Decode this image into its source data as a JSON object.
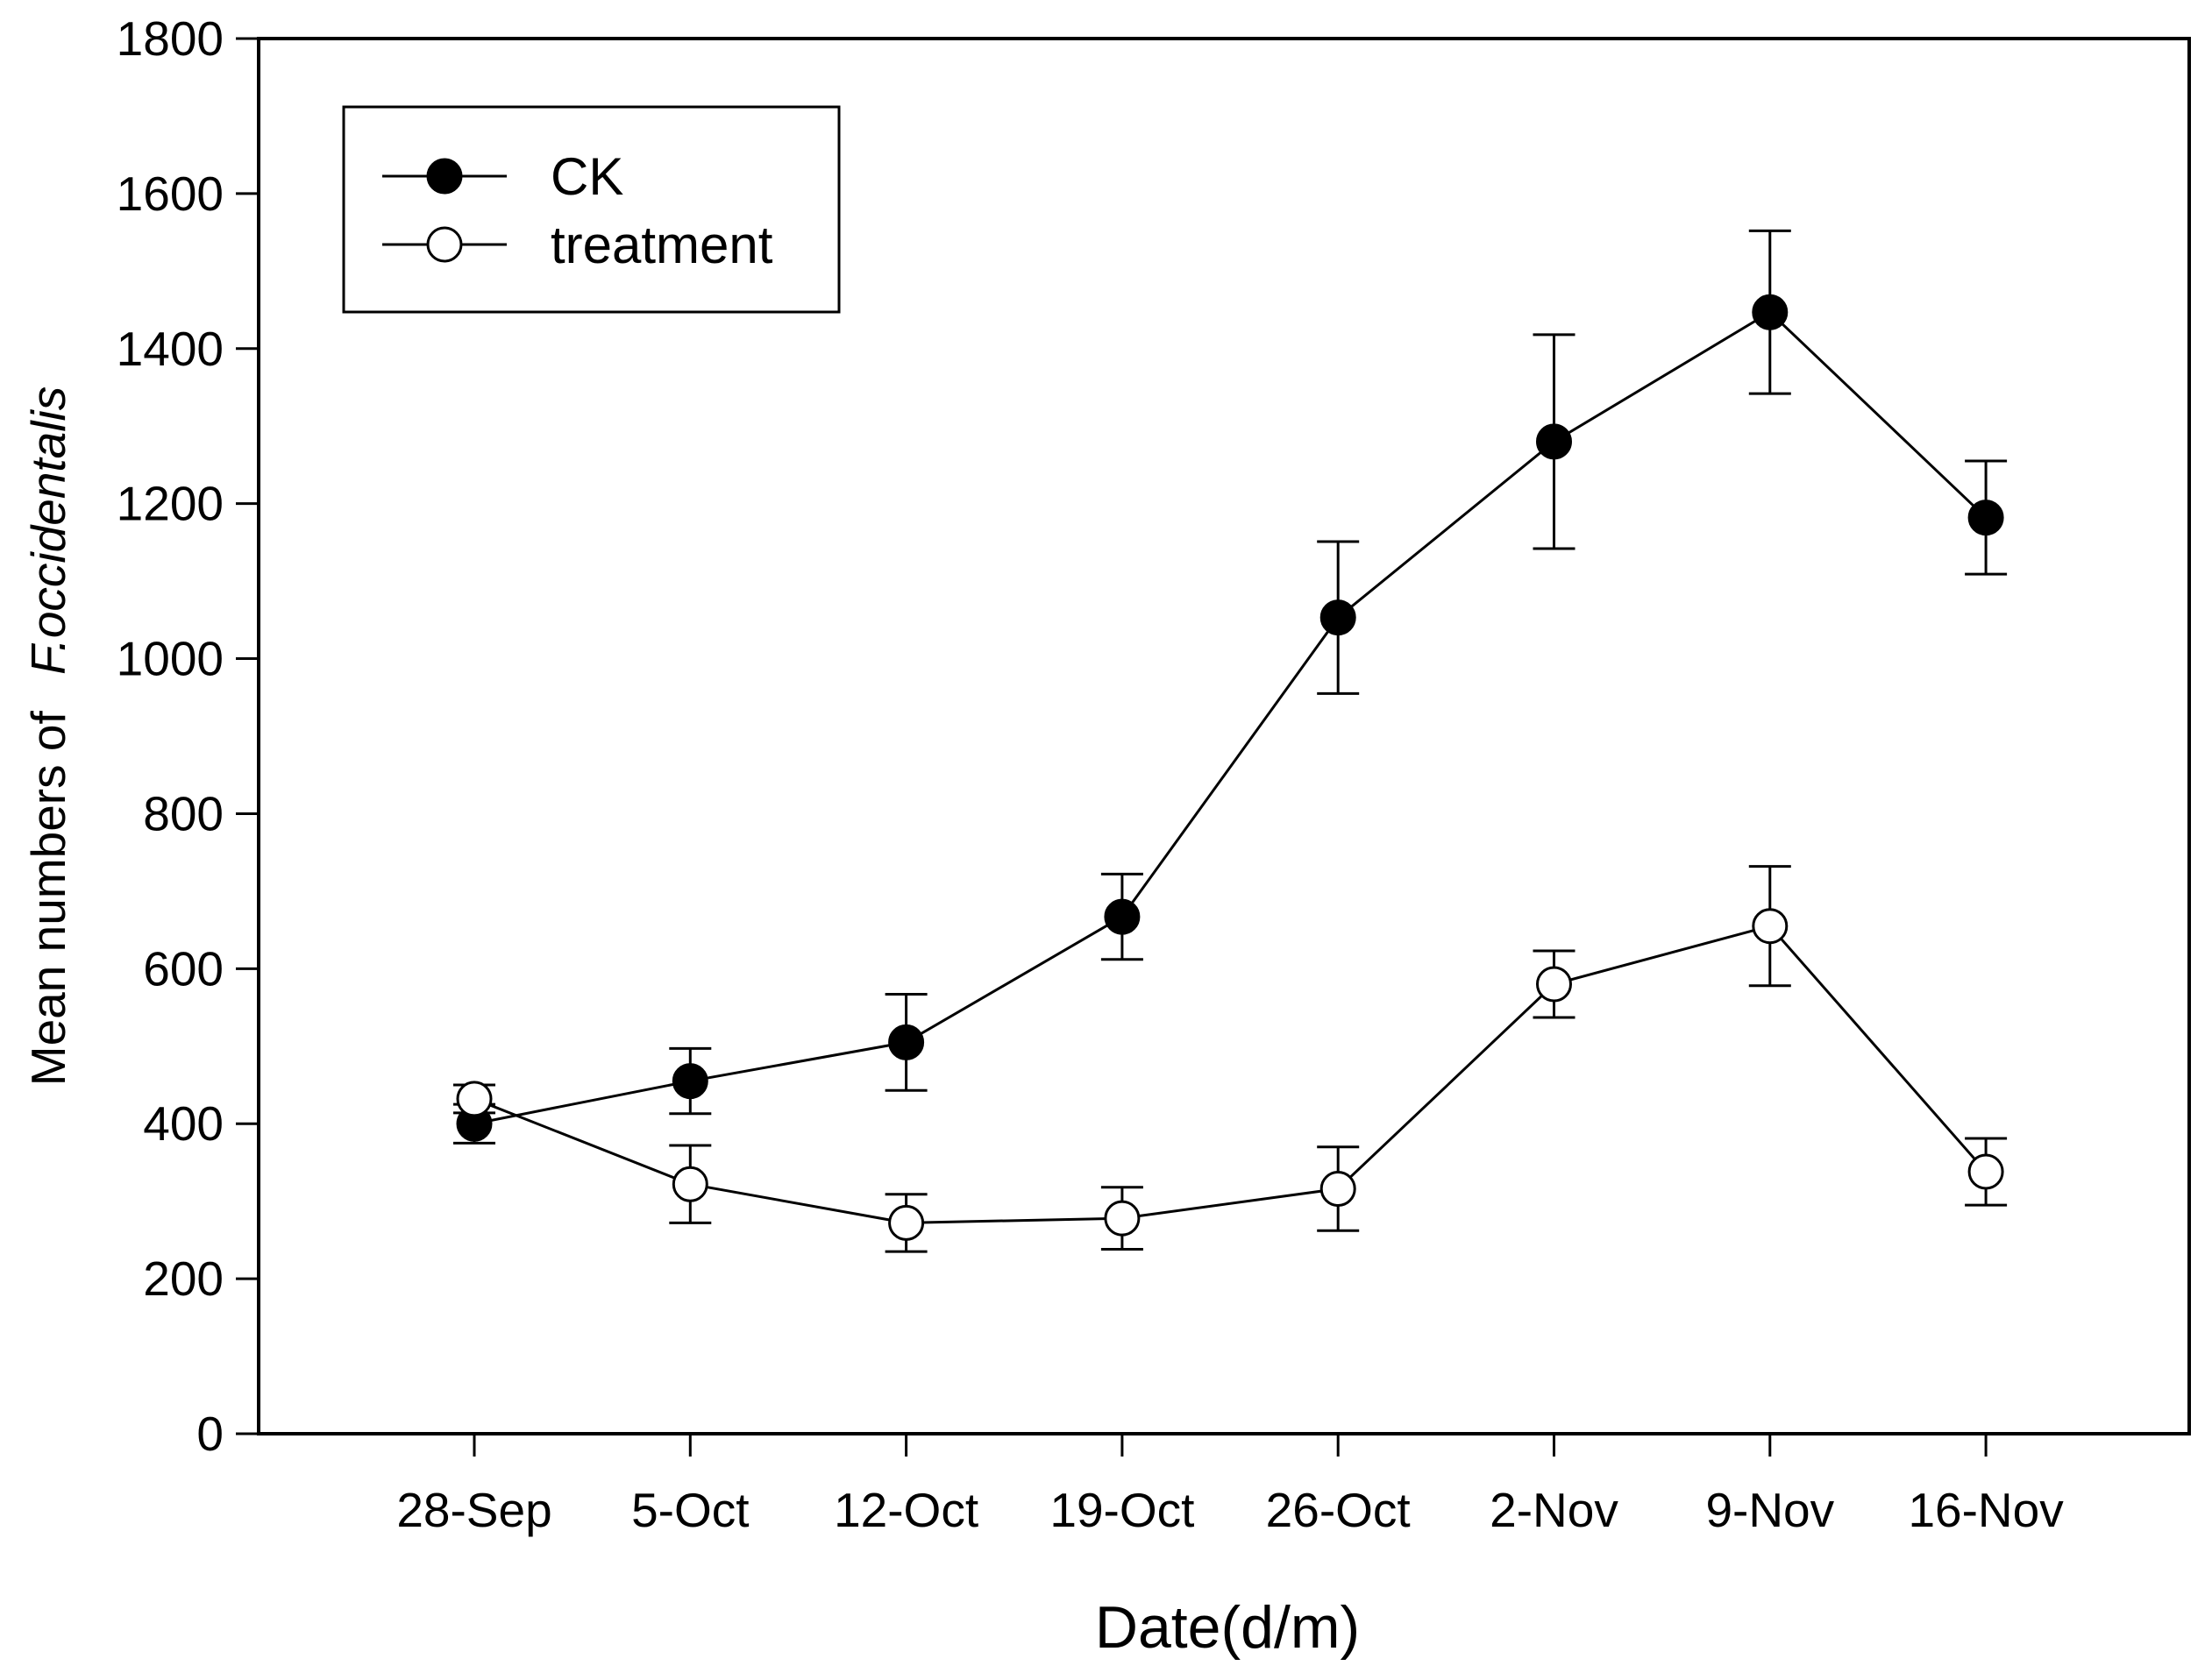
{
  "chart_data": {
    "type": "line",
    "title": "",
    "xlabel": "Date(d/m)",
    "ylabel_prefix": "Mean numbers of",
    "ylabel_species": "F.occidentalis",
    "ylim": [
      0,
      1800
    ],
    "yticks": [
      0,
      200,
      400,
      600,
      800,
      1000,
      1200,
      1400,
      1600,
      1800
    ],
    "categories": [
      "28-Sep",
      "5-Oct",
      "12-Oct",
      "19-Oct",
      "26-Oct",
      "2-Nov",
      "9-Nov",
      "16-Nov"
    ],
    "legend_position": "top-left",
    "grid": false,
    "series": [
      {
        "name": "CK",
        "marker": "filled-circle",
        "values": [
          400,
          455,
          505,
          667,
          1053,
          1280,
          1447,
          1182
        ],
        "error": [
          25,
          42,
          62,
          55,
          98,
          138,
          105,
          73
        ]
      },
      {
        "name": "treatment",
        "marker": "open-circle",
        "values": [
          432,
          322,
          272,
          278,
          316,
          580,
          655,
          338
        ],
        "error": [
          18,
          50,
          37,
          40,
          54,
          43,
          77,
          43
        ]
      }
    ]
  }
}
